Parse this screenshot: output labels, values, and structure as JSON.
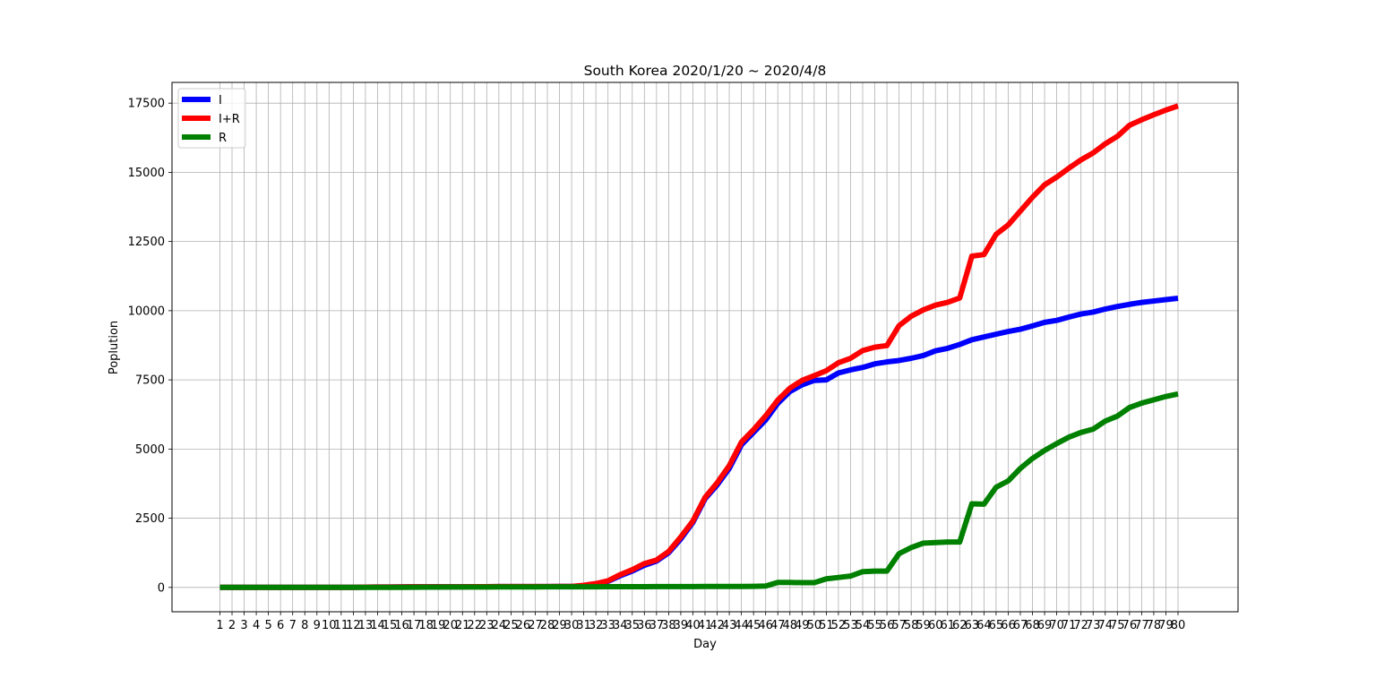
{
  "chart_data": {
    "type": "line",
    "title": "South Korea 2020/1/20 ~ 2020/4/8",
    "xlabel": "Day",
    "ylabel": "Poplution",
    "x": [
      1,
      2,
      3,
      4,
      5,
      6,
      7,
      8,
      9,
      10,
      11,
      12,
      13,
      14,
      15,
      16,
      17,
      18,
      19,
      20,
      21,
      22,
      23,
      24,
      25,
      26,
      27,
      28,
      29,
      30,
      31,
      32,
      33,
      34,
      35,
      36,
      37,
      38,
      39,
      40,
      41,
      42,
      43,
      44,
      45,
      46,
      47,
      48,
      49,
      50,
      51,
      52,
      53,
      54,
      55,
      56,
      57,
      58,
      59,
      60,
      61,
      62,
      63,
      64,
      65,
      66,
      67,
      68,
      69,
      70,
      71,
      72,
      73,
      74,
      75,
      76,
      77,
      78,
      79,
      80
    ],
    "xlim": [
      -2.95,
      84.95
    ],
    "ylim": [
      -880,
      18250
    ],
    "yticks": [
      0,
      2500,
      5000,
      7500,
      10000,
      12500,
      15000,
      17500
    ],
    "grid": true,
    "legend_position": "top-left",
    "series": [
      {
        "name": "I",
        "color": "#0000ff",
        "values": [
          1,
          1,
          2,
          2,
          3,
          4,
          4,
          4,
          4,
          4,
          4,
          4,
          11,
          16,
          16,
          19,
          23,
          24,
          24,
          24,
          24,
          27,
          28,
          30,
          30,
          30,
          31,
          32,
          33,
          35,
          65,
          130,
          220,
          420,
          590,
          800,
          950,
          1250,
          1750,
          2350,
          3200,
          3700,
          4300,
          5150,
          5600,
          6050,
          6650,
          7080,
          7320,
          7480,
          7500,
          7750,
          7860,
          7950,
          8080,
          8150,
          8200,
          8280,
          8380,
          8550,
          8640,
          8780,
          8950,
          9050,
          9150,
          9250,
          9330,
          9450,
          9580,
          9650,
          9770,
          9880,
          9950,
          10060,
          10150,
          10230,
          10300,
          10350,
          10400,
          10450
        ]
      },
      {
        "name": "I+R",
        "color": "#ff0000",
        "values": [
          1,
          1,
          2,
          2,
          3,
          4,
          4,
          4,
          4,
          4,
          4,
          4,
          11,
          16,
          16,
          19,
          23,
          24,
          24,
          24,
          24,
          27,
          28,
          30,
          30,
          30,
          31,
          32,
          33,
          35,
          75,
          140,
          240,
          460,
          640,
          860,
          990,
          1300,
          1820,
          2400,
          3250,
          3780,
          4400,
          5250,
          5700,
          6200,
          6770,
          7200,
          7480,
          7650,
          7830,
          8120,
          8280,
          8560,
          8680,
          8740,
          9460,
          9800,
          10030,
          10200,
          10300,
          10460,
          11970,
          12030,
          12760,
          13100,
          13600,
          14100,
          14550,
          14830,
          15150,
          15450,
          15700,
          16030,
          16300,
          16700,
          16900,
          17080,
          17250,
          17400
        ]
      },
      {
        "name": "R",
        "color": "#008000",
        "values": [
          0,
          0,
          0,
          0,
          0,
          0,
          0,
          0,
          0,
          0,
          1,
          1,
          1,
          2,
          3,
          4,
          6,
          9,
          11,
          13,
          14,
          14,
          16,
          18,
          18,
          18,
          18,
          21,
          22,
          23,
          24,
          24,
          25,
          26,
          26,
          27,
          29,
          30,
          30,
          31,
          33,
          34,
          34,
          36,
          40,
          50,
          180,
          180,
          170,
          170,
          310,
          360,
          410,
          570,
          590,
          590,
          1220,
          1440,
          1600,
          1620,
          1640,
          1640,
          3020,
          3010,
          3620,
          3850,
          4300,
          4660,
          4950,
          5200,
          5430,
          5600,
          5720,
          6010,
          6190,
          6500,
          6660,
          6780,
          6900,
          6990
        ]
      }
    ]
  }
}
